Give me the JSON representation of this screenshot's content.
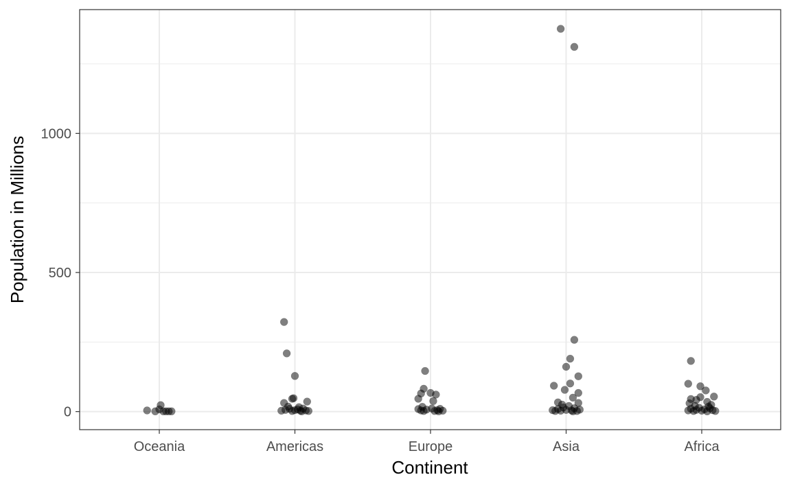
{
  "chart_data": {
    "type": "scatter",
    "title": "",
    "xlabel": "Continent",
    "ylabel": "Population in Millions",
    "categories": [
      "Oceania",
      "Americas",
      "Europe",
      "Asia",
      "Africa"
    ],
    "ylim": [
      -65,
      1445
    ],
    "yticks": [
      0,
      500,
      1000
    ],
    "grid": true,
    "legend": "none",
    "colors": {
      "point": "#000000",
      "point_opacity": 0.5,
      "grid": "#ebebeb",
      "panel_border": "#333333",
      "tick_text": "#4d4d4d"
    },
    "series": [
      {
        "category": "Oceania",
        "points": [
          {
            "x": -0.09,
            "y": 4
          },
          {
            "x": -0.03,
            "y": 1
          },
          {
            "x": 0.0,
            "y": 8
          },
          {
            "x": 0.01,
            "y": 23
          },
          {
            "x": 0.03,
            "y": 1
          },
          {
            "x": 0.05,
            "y": 1
          },
          {
            "x": 0.07,
            "y": 1
          },
          {
            "x": 0.09,
            "y": 1
          }
        ]
      },
      {
        "category": "Americas",
        "points": [
          {
            "x": -0.08,
            "y": 322
          },
          {
            "x": -0.06,
            "y": 209
          },
          {
            "x": 0.0,
            "y": 128
          },
          {
            "x": -0.08,
            "y": 31
          },
          {
            "x": -0.02,
            "y": 46
          },
          {
            "x": -0.01,
            "y": 48
          },
          {
            "x": 0.09,
            "y": 36
          },
          {
            "x": 0.03,
            "y": 16
          },
          {
            "x": -0.1,
            "y": 3
          },
          {
            "x": -0.07,
            "y": 6
          },
          {
            "x": -0.04,
            "y": 10
          },
          {
            "x": -0.02,
            "y": 2
          },
          {
            "x": 0.0,
            "y": 5
          },
          {
            "x": 0.02,
            "y": 8
          },
          {
            "x": 0.04,
            "y": 3
          },
          {
            "x": 0.06,
            "y": 11
          },
          {
            "x": 0.08,
            "y": 4
          },
          {
            "x": 0.1,
            "y": 2
          },
          {
            "x": -0.05,
            "y": 18
          },
          {
            "x": 0.05,
            "y": 1
          }
        ]
      },
      {
        "category": "Europe",
        "points": [
          {
            "x": -0.04,
            "y": 146
          },
          {
            "x": -0.05,
            "y": 82
          },
          {
            "x": 0.0,
            "y": 67
          },
          {
            "x": -0.07,
            "y": 65
          },
          {
            "x": 0.04,
            "y": 61
          },
          {
            "x": -0.09,
            "y": 46
          },
          {
            "x": 0.02,
            "y": 38
          },
          {
            "x": -0.06,
            "y": 17
          },
          {
            "x": 0.01,
            "y": 11
          },
          {
            "x": -0.09,
            "y": 9
          },
          {
            "x": -0.07,
            "y": 4
          },
          {
            "x": -0.05,
            "y": 2
          },
          {
            "x": -0.03,
            "y": 7
          },
          {
            "x": 0.03,
            "y": 2
          },
          {
            "x": 0.05,
            "y": 5
          },
          {
            "x": 0.07,
            "y": 10
          },
          {
            "x": 0.09,
            "y": 3
          },
          {
            "x": 0.06,
            "y": 1
          }
        ]
      },
      {
        "category": "Asia",
        "points": [
          {
            "x": -0.04,
            "y": 1376
          },
          {
            "x": 0.06,
            "y": 1311
          },
          {
            "x": 0.06,
            "y": 258
          },
          {
            "x": 0.03,
            "y": 190
          },
          {
            "x": 0.0,
            "y": 161
          },
          {
            "x": 0.09,
            "y": 127
          },
          {
            "x": 0.03,
            "y": 101
          },
          {
            "x": -0.09,
            "y": 93
          },
          {
            "x": -0.01,
            "y": 78
          },
          {
            "x": 0.09,
            "y": 67
          },
          {
            "x": 0.05,
            "y": 50
          },
          {
            "x": -0.06,
            "y": 33
          },
          {
            "x": 0.09,
            "y": 31
          },
          {
            "x": -0.1,
            "y": 5
          },
          {
            "x": -0.08,
            "y": 2
          },
          {
            "x": -0.06,
            "y": 9
          },
          {
            "x": -0.04,
            "y": 3
          },
          {
            "x": -0.02,
            "y": 15
          },
          {
            "x": 0.0,
            "y": 6
          },
          {
            "x": 0.02,
            "y": 20
          },
          {
            "x": 0.04,
            "y": 4
          },
          {
            "x": 0.06,
            "y": 12
          },
          {
            "x": 0.08,
            "y": 2
          },
          {
            "x": 0.1,
            "y": 7
          },
          {
            "x": -0.03,
            "y": 25
          },
          {
            "x": 0.05,
            "y": 1
          }
        ]
      },
      {
        "category": "Africa",
        "points": [
          {
            "x": -0.08,
            "y": 182
          },
          {
            "x": -0.1,
            "y": 100
          },
          {
            "x": -0.01,
            "y": 91
          },
          {
            "x": 0.03,
            "y": 76
          },
          {
            "x": 0.09,
            "y": 54
          },
          {
            "x": -0.01,
            "y": 52
          },
          {
            "x": -0.08,
            "y": 45
          },
          {
            "x": -0.04,
            "y": 42
          },
          {
            "x": 0.04,
            "y": 35
          },
          {
            "x": -0.09,
            "y": 30
          },
          {
            "x": 0.07,
            "y": 24
          },
          {
            "x": -0.1,
            "y": 4
          },
          {
            "x": -0.08,
            "y": 10
          },
          {
            "x": -0.06,
            "y": 2
          },
          {
            "x": -0.04,
            "y": 6
          },
          {
            "x": -0.02,
            "y": 14
          },
          {
            "x": 0.0,
            "y": 3
          },
          {
            "x": 0.02,
            "y": 8
          },
          {
            "x": 0.04,
            "y": 1
          },
          {
            "x": 0.06,
            "y": 12
          },
          {
            "x": 0.08,
            "y": 5
          },
          {
            "x": 0.1,
            "y": 2
          },
          {
            "x": -0.05,
            "y": 20
          },
          {
            "x": 0.05,
            "y": 18
          }
        ]
      }
    ]
  }
}
